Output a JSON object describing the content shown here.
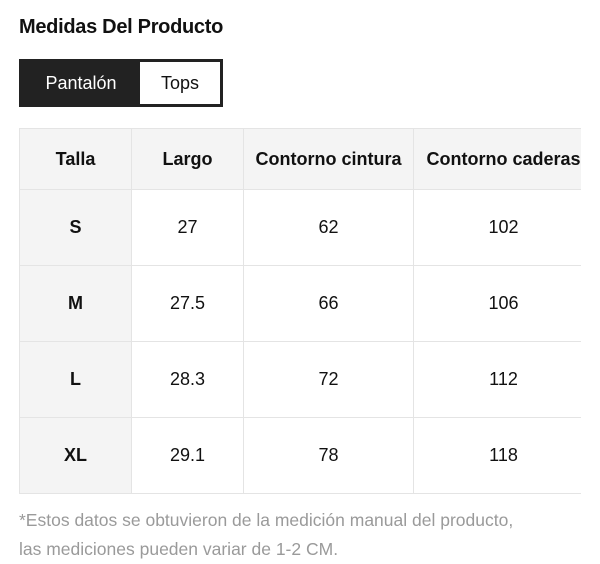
{
  "title": "Medidas Del Producto",
  "tabs": [
    {
      "label": "Pantalón",
      "active": true
    },
    {
      "label": "Tops",
      "active": false
    }
  ],
  "table": {
    "headers": [
      "Talla",
      "Largo",
      "Contorno cintura",
      "Contorno caderas"
    ],
    "rows": [
      [
        "S",
        "27",
        "62",
        "102"
      ],
      [
        "M",
        "27.5",
        "66",
        "106"
      ],
      [
        "L",
        "28.3",
        "72",
        "112"
      ],
      [
        "XL",
        "29.1",
        "78",
        "118"
      ]
    ]
  },
  "note": {
    "line1": "*Estos datos se obtuvieron de la medición manual del producto,",
    "line2": "las mediciones pueden variar de 1-2 CM."
  },
  "colors": {
    "active_tab": "#222222",
    "header_bg": "#f4f4f4",
    "note_text": "#9a9a9a"
  }
}
